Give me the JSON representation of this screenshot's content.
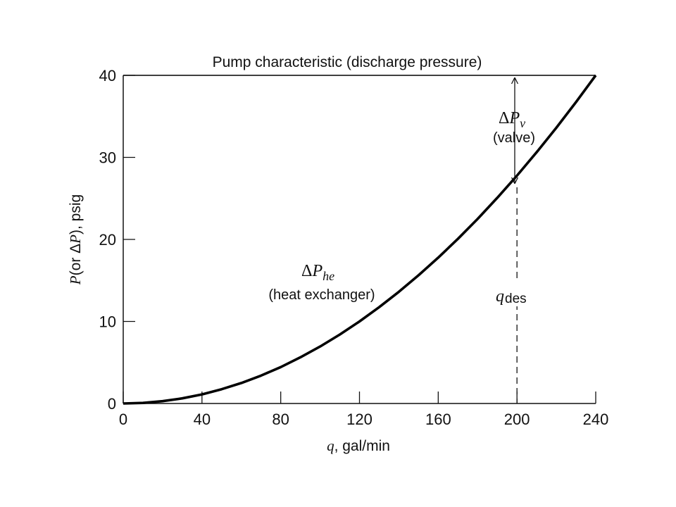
{
  "chart_data": {
    "type": "line",
    "title": "Pump characteristic (discharge pressure)",
    "xlabel": {
      "var": "q",
      "text": ", gal/min"
    },
    "ylabel": {
      "var": "P",
      "open": "(or ",
      "delta": "Δ",
      "var2": "P",
      "close": "), psig"
    },
    "xlim": [
      0,
      240
    ],
    "ylim": [
      0,
      40
    ],
    "xticks": [
      0,
      40,
      80,
      120,
      160,
      200,
      240
    ],
    "yticks": [
      0,
      10,
      20,
      30,
      40
    ],
    "grid": false,
    "series": [
      {
        "x": [
          0,
          10,
          20,
          30,
          40,
          50,
          60,
          70,
          80,
          90,
          100,
          110,
          120,
          130,
          140,
          150,
          160,
          170,
          180,
          190,
          200,
          210,
          220,
          230,
          240
        ],
        "y": [
          0,
          0.07,
          0.28,
          0.63,
          1.11,
          1.74,
          2.5,
          3.4,
          4.44,
          5.63,
          6.94,
          8.4,
          10.0,
          11.74,
          13.61,
          15.63,
          17.78,
          20.07,
          22.5,
          25.07,
          27.78,
          30.63,
          33.61,
          36.74,
          40.0
        ]
      },
      {
        "x": [
          0,
          240
        ],
        "y": [
          40,
          40
        ]
      }
    ],
    "annotations": {
      "he": {
        "delta": "Δ",
        "var": "P",
        "sub": "he",
        "caption": "(heat exchanger)"
      },
      "valve": {
        "delta": "Δ",
        "var": "P",
        "sub": "v",
        "caption": "(valve)"
      },
      "qdes": {
        "var": "q",
        "sub": "des",
        "x": 200
      }
    },
    "colors": {
      "line": "#000000",
      "axis": "#000000"
    }
  }
}
